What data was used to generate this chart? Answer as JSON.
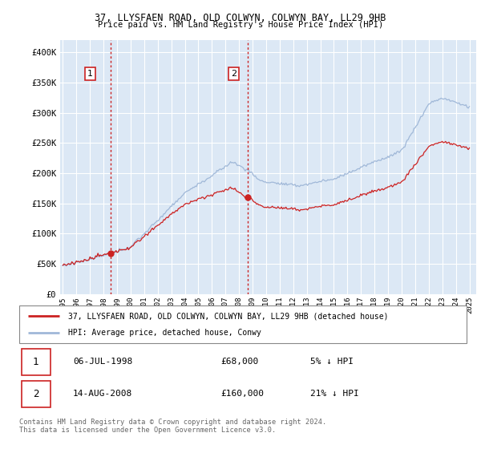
{
  "title_line1": "37, LLYSFAEN ROAD, OLD COLWYN, COLWYN BAY, LL29 9HB",
  "title_line2": "Price paid vs. HM Land Registry's House Price Index (HPI)",
  "hpi_color": "#a0b8d8",
  "price_color": "#cc2222",
  "vline_color": "#cc2222",
  "marker_color": "#cc2222",
  "legend_label1": "37, LLYSFAEN ROAD, OLD COLWYN, COLWYN BAY, LL29 9HB (detached house)",
  "legend_label2": "HPI: Average price, detached house, Conwy",
  "table_row1_num": "1",
  "table_row1_date": "06-JUL-1998",
  "table_row1_price": "£68,000",
  "table_row1_hpi": "5% ↓ HPI",
  "table_row2_num": "2",
  "table_row2_date": "14-AUG-2008",
  "table_row2_price": "£160,000",
  "table_row2_hpi": "21% ↓ HPI",
  "footnote": "Contains HM Land Registry data © Crown copyright and database right 2024.\nThis data is licensed under the Open Government Licence v3.0.",
  "background_color": "#ffffff",
  "plot_bg_color": "#dce8f5",
  "grid_color": "#ffffff",
  "sale1_x": 1998.52,
  "sale1_y": 68000,
  "sale2_x": 2008.62,
  "sale2_y": 160000,
  "xlim": [
    1994.8,
    2025.5
  ],
  "ylim": [
    0,
    420000
  ],
  "yticks": [
    0,
    50000,
    100000,
    150000,
    200000,
    250000,
    300000,
    350000,
    400000
  ],
  "ytick_labels": [
    "£0",
    "£50K",
    "£100K",
    "£150K",
    "£200K",
    "£250K",
    "£300K",
    "£350K",
    "£400K"
  ]
}
